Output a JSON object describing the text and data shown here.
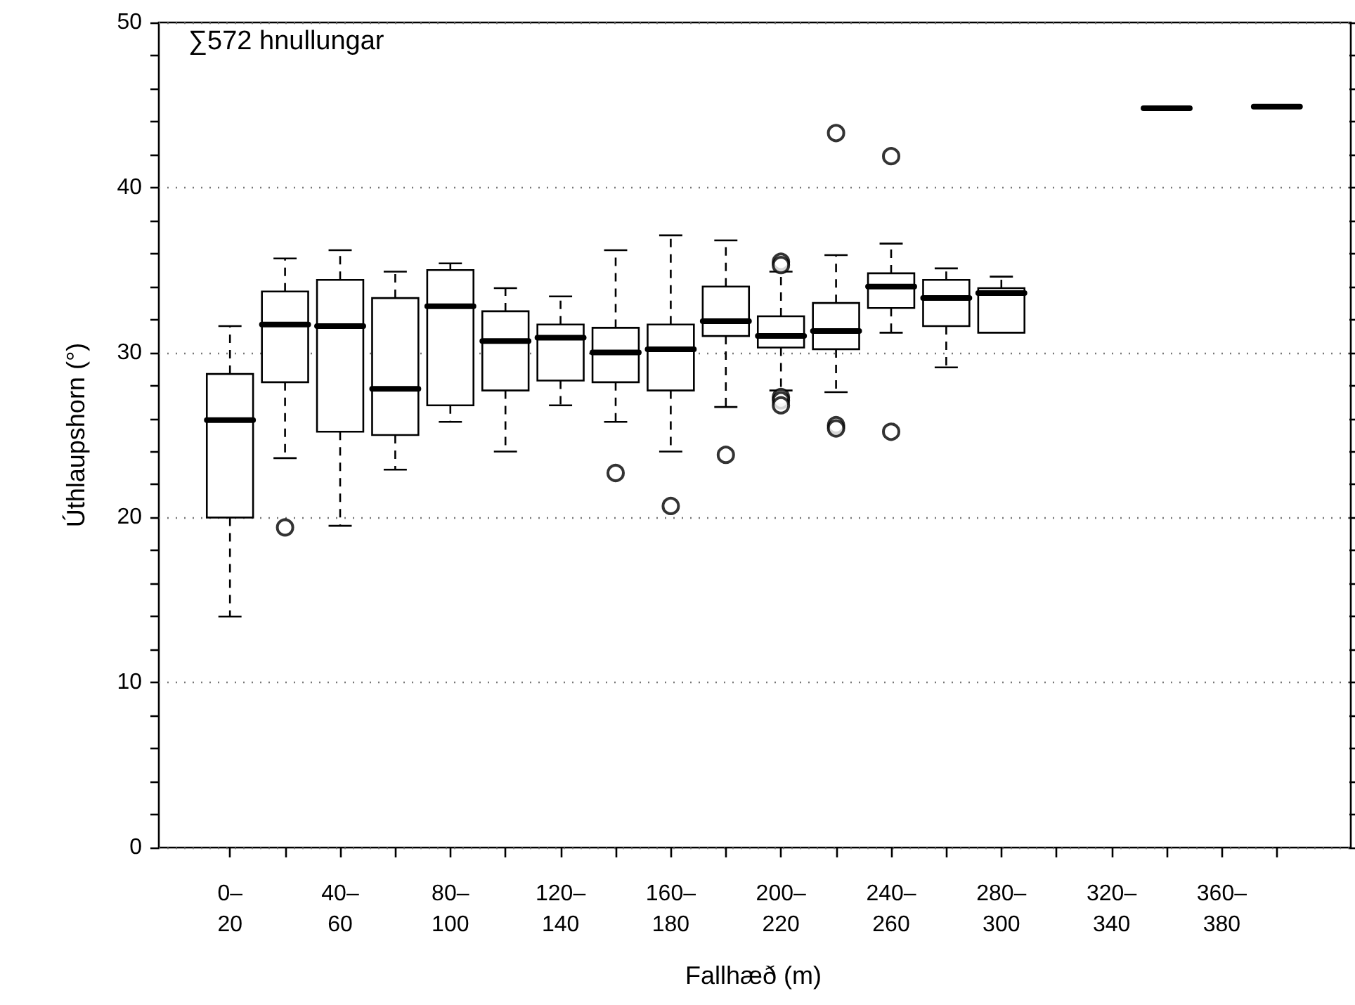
{
  "chart_data": {
    "type": "box",
    "xlabel": "Fallhæð (m)",
    "ylabel": "Úthlaupshorn (°)",
    "annotations": [
      "∑572 hnullungar"
    ],
    "categories": [
      "0–20",
      null,
      "40–60",
      null,
      "80–100",
      null,
      "120–140",
      null,
      "160–180",
      null,
      "200–220",
      null,
      "240–260",
      null,
      "280–300",
      null,
      "320–340",
      null,
      "360–380",
      null
    ],
    "boxes": [
      {
        "low": 14.0,
        "q1": 20.0,
        "median": 25.9,
        "q3": 28.7,
        "high": 31.6
      },
      {
        "low": 23.6,
        "q1": 28.2,
        "median": 31.7,
        "q3": 33.7,
        "high": 35.7,
        "outliers": [
          19.4
        ]
      },
      {
        "low": 19.5,
        "q1": 25.2,
        "median": 31.6,
        "q3": 34.4,
        "high": 36.2
      },
      {
        "low": 22.9,
        "q1": 25.0,
        "median": 27.8,
        "q3": 33.3,
        "high": 34.9
      },
      {
        "low": 25.8,
        "q1": 26.8,
        "median": 32.8,
        "q3": 35.0,
        "high": 35.4
      },
      {
        "low": 24.0,
        "q1": 27.7,
        "median": 30.7,
        "q3": 32.5,
        "high": 33.9
      },
      {
        "low": 26.8,
        "q1": 28.3,
        "median": 30.9,
        "q3": 31.7,
        "high": 33.4
      },
      {
        "low": 25.8,
        "q1": 28.2,
        "median": 30.0,
        "q3": 31.5,
        "high": 36.2,
        "outliers": [
          22.7
        ]
      },
      {
        "low": 24.0,
        "q1": 27.7,
        "median": 30.2,
        "q3": 31.7,
        "high": 37.1,
        "outliers": [
          20.7
        ]
      },
      {
        "low": 26.7,
        "q1": 31.0,
        "median": 31.9,
        "q3": 34.0,
        "high": 36.8,
        "outliers": [
          23.8
        ]
      },
      {
        "low": 27.7,
        "q1": 30.3,
        "median": 31.0,
        "q3": 32.2,
        "high": 34.9,
        "outliers": [
          35.5,
          35.3,
          27.3,
          27.1,
          26.8
        ]
      },
      {
        "low": 27.6,
        "q1": 30.2,
        "median": 31.3,
        "q3": 33.0,
        "high": 35.9,
        "outliers": [
          43.3,
          25.6,
          25.4
        ]
      },
      {
        "low": 31.2,
        "q1": 32.7,
        "median": 34.0,
        "q3": 34.8,
        "high": 36.6,
        "outliers": [
          41.9,
          25.2
        ]
      },
      {
        "low": 29.1,
        "q1": 31.6,
        "median": 33.3,
        "q3": 34.4,
        "high": 35.1
      },
      {
        "low": 31.2,
        "q1": 31.2,
        "median": 33.6,
        "q3": 33.9,
        "high": 34.6
      },
      null,
      null,
      {
        "low": 44.8,
        "q1": 44.8,
        "median": 44.8,
        "q3": 44.8,
        "high": 44.8
      },
      null,
      {
        "low": 44.9,
        "q1": 44.9,
        "median": 44.9,
        "q3": 44.9,
        "high": 44.9
      }
    ],
    "ylim": [
      0,
      50
    ],
    "yticks": [
      0,
      {
        "value": 2,
        "label": null
      },
      {
        "value": 4,
        "label": null
      },
      {
        "value": 6,
        "label": null
      },
      {
        "value": 8,
        "label": null
      },
      10,
      {
        "value": 12,
        "label": null
      },
      {
        "value": 14,
        "label": null
      },
      {
        "value": 16,
        "label": null
      },
      {
        "value": 18,
        "label": null
      },
      20,
      {
        "value": 22,
        "label": null
      },
      {
        "value": 24,
        "label": null
      },
      {
        "value": 26,
        "label": null
      },
      {
        "value": 28,
        "label": null
      },
      30,
      {
        "value": 32,
        "label": null
      },
      {
        "value": 34,
        "label": null
      },
      {
        "value": 36,
        "label": null
      },
      {
        "value": 38,
        "label": null
      },
      40,
      {
        "value": 42,
        "label": null
      },
      {
        "value": 44,
        "label": null
      },
      {
        "value": 46,
        "label": null
      },
      {
        "value": 48,
        "label": null
      },
      50
    ],
    "grid": "y",
    "marker": "circle"
  }
}
